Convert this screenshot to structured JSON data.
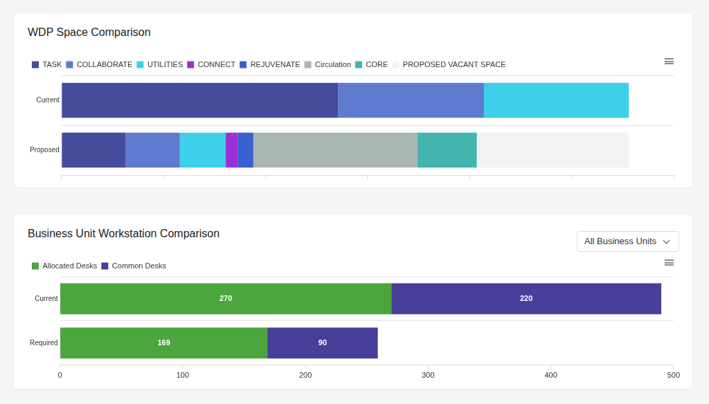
{
  "chart_data": [
    {
      "type": "bar",
      "title": "WDP Space Comparison",
      "orientation": "horizontal",
      "stacked": true,
      "categories": [
        "Current",
        "Proposed"
      ],
      "series": [
        {
          "name": "TASK",
          "color": "#454c9b",
          "values": [
            2710,
            630
          ]
        },
        {
          "name": "COLLABORATE",
          "color": "#5f7bcf",
          "values": [
            1430,
            530
          ]
        },
        {
          "name": "UTILITIES",
          "color": "#3ecfe9",
          "values": [
            1420,
            450
          ]
        },
        {
          "name": "CONNECT",
          "color": "#9b30d9",
          "values": [
            null,
            120
          ]
        },
        {
          "name": "REJUVENATE",
          "color": "#3a5fd1",
          "values": [
            null,
            150
          ]
        },
        {
          "name": "Circulation",
          "color": "#a8b5b2",
          "values": [
            null,
            1610
          ]
        },
        {
          "name": "CORE",
          "color": "#42b5af",
          "values": [
            null,
            580
          ]
        },
        {
          "name": "PROPOSED VACANT SPACE",
          "color": "#f2f2f2",
          "values": [
            null,
            1490
          ]
        }
      ],
      "xlim": [
        0,
        6000
      ],
      "xticks": [
        0,
        1000,
        2000,
        3000,
        4000,
        5000,
        6000
      ],
      "tick_labels": "y",
      "grid": "y",
      "legend": "top-left",
      "data_labels": false
    },
    {
      "type": "bar",
      "title": "Business Unit Workstation Comparison",
      "orientation": "horizontal",
      "stacked": true,
      "categories": [
        "Current",
        "Required"
      ],
      "series": [
        {
          "name": "Allocated Desks",
          "color": "#4ba63e",
          "values": [
            270,
            169
          ]
        },
        {
          "name": "Common Desks",
          "color": "#473f99",
          "values": [
            220,
            90
          ]
        }
      ],
      "xlim": [
        0,
        500
      ],
      "xticks": [
        0,
        100,
        200,
        300,
        400,
        500
      ],
      "tick_labels": true,
      "grid": "y",
      "legend": "top-left",
      "data_labels": true
    }
  ],
  "controls": {
    "business_unit_filter": "All Business Units"
  }
}
